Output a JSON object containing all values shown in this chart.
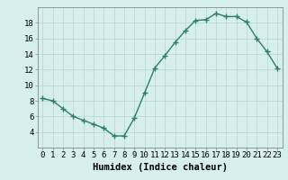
{
  "xlabel": "Humidex (Indice chaleur)",
  "x": [
    0,
    1,
    2,
    3,
    4,
    5,
    6,
    7,
    8,
    9,
    10,
    11,
    12,
    13,
    14,
    15,
    16,
    17,
    18,
    19,
    20,
    21,
    22,
    23
  ],
  "y": [
    8.3,
    8.0,
    7.0,
    6.0,
    5.5,
    5.0,
    4.5,
    3.5,
    3.5,
    5.8,
    9.0,
    12.2,
    13.8,
    15.5,
    17.0,
    18.3,
    18.4,
    19.2,
    18.8,
    18.8,
    18.1,
    16.0,
    14.3,
    12.2
  ],
  "line_color": "#2e7d6e",
  "marker": "+",
  "marker_size": 4,
  "marker_linewidth": 1.0,
  "line_width": 1.0,
  "bg_color": "#d6eeec",
  "grid_color": "#b8d4d0",
  "ylim": [
    2,
    20
  ],
  "xlim": [
    -0.5,
    23.5
  ],
  "yticks": [
    4,
    6,
    8,
    10,
    12,
    14,
    16,
    18
  ],
  "xticks": [
    0,
    1,
    2,
    3,
    4,
    5,
    6,
    7,
    8,
    9,
    10,
    11,
    12,
    13,
    14,
    15,
    16,
    17,
    18,
    19,
    20,
    21,
    22,
    23
  ],
  "tick_fontsize": 6.5,
  "xlabel_fontsize": 7.5,
  "xlabel_fontweight": "bold"
}
